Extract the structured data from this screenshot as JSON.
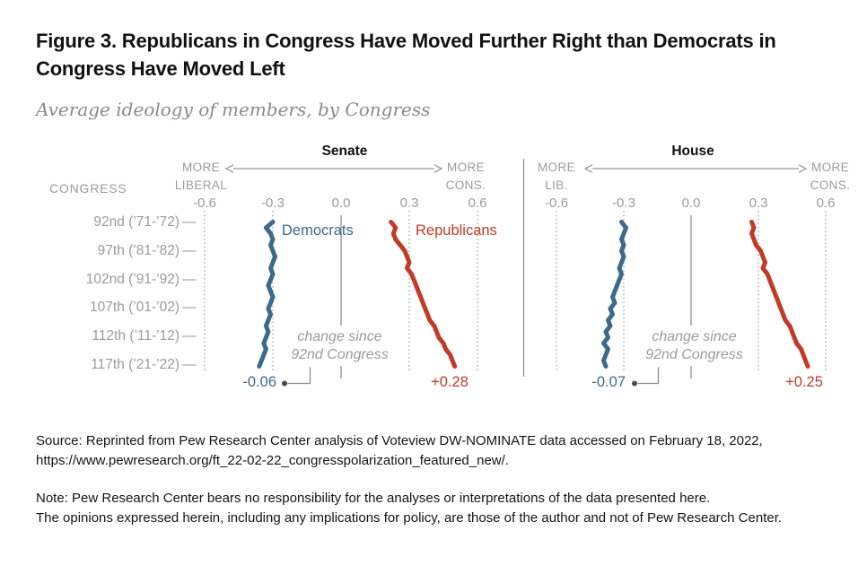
{
  "figure": {
    "title_lines": [
      "Figure 3. Republicans in Congress Have Moved Further Right than Democrats in",
      "Congress Have Moved Left"
    ],
    "subtitle": "Average ideology of members, by Congress"
  },
  "left_axis": {
    "header": "CONGRESS",
    "rows": [
      "92nd (’71-’72)",
      "97th (’81-’82)",
      "102nd (’91-’92)",
      "107th (’01-’02)",
      "112th (’11-’12)",
      "117th (’21-’22)"
    ],
    "dash": "—"
  },
  "panels": [
    {
      "title": "Senate",
      "left_direction": [
        "MORE",
        "LIBERAL"
      ],
      "right_direction": [
        "MORE",
        "CONS."
      ],
      "ticks": [
        "-0.6",
        "-0.3",
        "0.0",
        "0.3",
        "0.6"
      ],
      "legend_dem": "Democrats",
      "legend_rep": "Republicans",
      "annotation": [
        "change since",
        "92nd Congress"
      ],
      "dem_change": "-0.06",
      "rep_change": "+0.28"
    },
    {
      "title": "House",
      "left_direction": [
        "MORE",
        "LIB."
      ],
      "right_direction": [
        "MORE",
        "CONS."
      ],
      "ticks": [
        "-0.6",
        "-0.3",
        "0.0",
        "0.3",
        "0.6"
      ],
      "annotation": [
        "change since",
        "92nd Congress"
      ],
      "dem_change": "-0.07",
      "rep_change": "+0.25"
    }
  ],
  "chart_data": {
    "type": "line",
    "title": "Average ideology of members, by Congress",
    "x_tick_labels": [
      "-0.6",
      "-0.3",
      "0.0",
      "0.3",
      "0.6"
    ],
    "x_ticks": [
      -0.6,
      -0.3,
      0,
      0.3,
      0.6
    ],
    "axis_direction_left": "MORE LIBERAL",
    "axis_direction_right": "MORE CONSERVATIVE",
    "congress_start": 92,
    "congress_end": 117,
    "labeled_congresses": [
      "92nd (’71-’72)",
      "97th (’81-’82)",
      "102nd (’91-’92)",
      "107th (’01-’02)",
      "112th (’11-’12)",
      "117th (’21-’22)"
    ],
    "panels": [
      {
        "name": "Senate",
        "series": [
          {
            "name": "Democrats",
            "color": "#3D6A8C",
            "change_since_92nd": -0.06,
            "values": [
              -0.3,
              -0.33,
              -0.31,
              -0.3,
              -0.31,
              -0.3,
              -0.29,
              -0.3,
              -0.31,
              -0.3,
              -0.31,
              -0.32,
              -0.31,
              -0.3,
              -0.31,
              -0.32,
              -0.31,
              -0.32,
              -0.33,
              -0.32,
              -0.33,
              -0.34,
              -0.33,
              -0.34,
              -0.35,
              -0.36
            ]
          },
          {
            "name": "Republicans",
            "color": "#C13B28",
            "change_since_92nd": 0.28,
            "values": [
              0.22,
              0.24,
              0.23,
              0.24,
              0.26,
              0.28,
              0.29,
              0.3,
              0.29,
              0.31,
              0.32,
              0.33,
              0.34,
              0.35,
              0.36,
              0.37,
              0.38,
              0.39,
              0.41,
              0.42,
              0.43,
              0.45,
              0.46,
              0.48,
              0.49,
              0.5
            ]
          }
        ]
      },
      {
        "name": "House",
        "series": [
          {
            "name": "Democrats",
            "color": "#3D6A8C",
            "change_since_92nd": -0.07,
            "values": [
              -0.31,
              -0.29,
              -0.3,
              -0.31,
              -0.3,
              -0.31,
              -0.3,
              -0.31,
              -0.32,
              -0.31,
              -0.32,
              -0.33,
              -0.34,
              -0.35,
              -0.34,
              -0.36,
              -0.35,
              -0.37,
              -0.36,
              -0.38,
              -0.37,
              -0.39,
              -0.37,
              -0.38,
              -0.39,
              -0.38
            ]
          },
          {
            "name": "Republicans",
            "color": "#C13B28",
            "change_since_92nd": 0.25,
            "values": [
              0.27,
              0.28,
              0.27,
              0.28,
              0.29,
              0.31,
              0.32,
              0.33,
              0.32,
              0.34,
              0.35,
              0.36,
              0.37,
              0.38,
              0.39,
              0.4,
              0.41,
              0.42,
              0.44,
              0.45,
              0.46,
              0.47,
              0.49,
              0.5,
              0.51,
              0.52
            ]
          }
        ]
      }
    ]
  },
  "footer": {
    "source_lines": [
      "Source: Reprinted from Pew Research Center analysis of Voteview DW-NOMINATE data accessed on February 18, 2022,",
      "https://www.pewresearch.org/ft_22-02-22_congresspolarization_featured_new/."
    ],
    "note_lines": [
      "Note: Pew Research Center bears no responsibility for the analyses or interpretations of the data presented here.",
      "The opinions expressed herein, including any implications for policy, are those of the author and not of Pew Research Center."
    ]
  },
  "colors": {
    "democrat": "#3D6A8C",
    "republican": "#C13B28",
    "axis_gray": "#9B9B9B",
    "grid_gray": "#B0B0B0",
    "zero_line_gray": "#A3A3A3",
    "text_black": "#141414"
  }
}
